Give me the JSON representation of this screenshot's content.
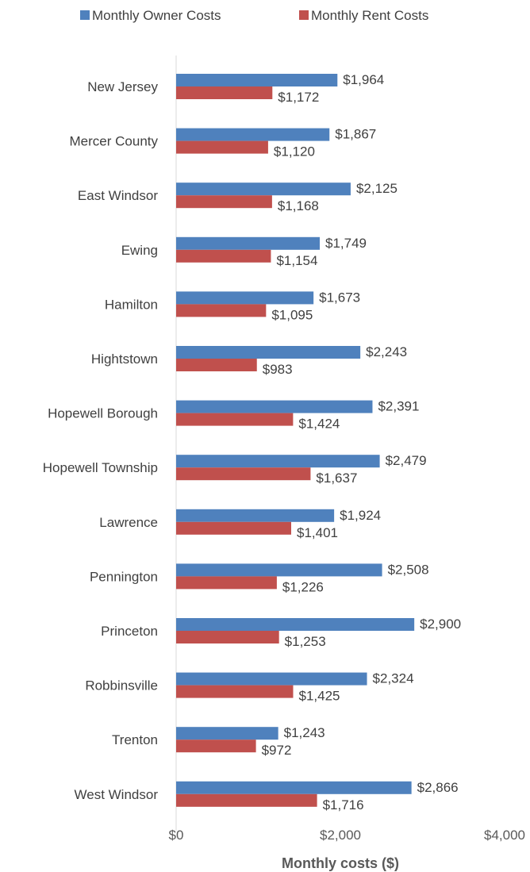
{
  "chart_data": {
    "type": "bar",
    "orientation": "horizontal",
    "categories": [
      "New Jersey",
      "Mercer County",
      "East Windsor",
      "Ewing",
      "Hamilton",
      "Hightstown",
      "Hopewell Borough",
      "Hopewell Township",
      "Lawrence",
      "Pennington",
      "Princeton",
      "Robbinsville",
      "Trenton",
      "West Windsor"
    ],
    "series": [
      {
        "name": "Monthly Owner Costs",
        "color": "#4f81bd",
        "values": [
          1964,
          1867,
          2125,
          1749,
          1673,
          2243,
          2391,
          2479,
          1924,
          2508,
          2900,
          2324,
          1243,
          2866
        ],
        "labels": [
          "$1,964",
          "$1,867",
          "$2,125",
          "$1,749",
          "$1,673",
          "$2,243",
          "$2,391",
          "$2,479",
          "$1,924",
          "$2,508",
          "$2,900",
          "$2,324",
          "$1,243",
          "$2,866"
        ]
      },
      {
        "name": "Monthly Rent Costs",
        "color": "#c0504d",
        "values": [
          1172,
          1120,
          1168,
          1154,
          1095,
          983,
          1424,
          1637,
          1401,
          1226,
          1253,
          1425,
          972,
          1716
        ],
        "labels": [
          "$1,172",
          "$1,120",
          "$1,168",
          "$1,154",
          "$1,095",
          "$983",
          "$1,424",
          "$1,637",
          "$1,401",
          "$1,226",
          "$1,253",
          "$1,425",
          "$972",
          "$1,716"
        ]
      }
    ],
    "xlabel": "Monthly costs ($)",
    "xlim": [
      0,
      4000
    ],
    "x_ticks": [
      0,
      2000,
      4000
    ],
    "x_tick_labels": [
      "$0",
      "$2,000",
      "$4,000"
    ],
    "grid": false,
    "legend_position": "top"
  }
}
